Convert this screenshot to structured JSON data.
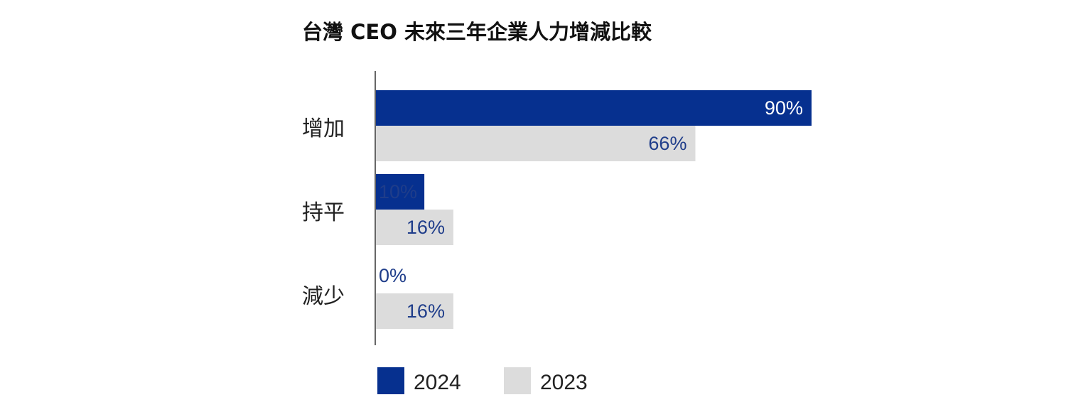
{
  "chart_data": {
    "type": "bar",
    "orientation": "horizontal",
    "title": "台灣 CEO 未來三年企業人力增減比較",
    "categories": [
      "增加",
      "持平",
      "減少"
    ],
    "series": [
      {
        "name": "2024",
        "values": [
          90,
          10,
          0
        ],
        "labels": [
          "90%",
          "10%",
          "0%"
        ],
        "color": "#06308f"
      },
      {
        "name": "2023",
        "values": [
          66,
          16,
          16
        ],
        "labels": [
          "66%",
          "16%",
          "16%"
        ],
        "color": "#dcdcdc"
      }
    ],
    "xlim": [
      0,
      100
    ],
    "xlabel": "",
    "ylabel": "",
    "grid": false,
    "legend": [
      "2024",
      "2023"
    ],
    "legend_position": "bottom-left",
    "label_inside_color": "#ffffff",
    "label_outside_color": "#1f3d8a"
  }
}
